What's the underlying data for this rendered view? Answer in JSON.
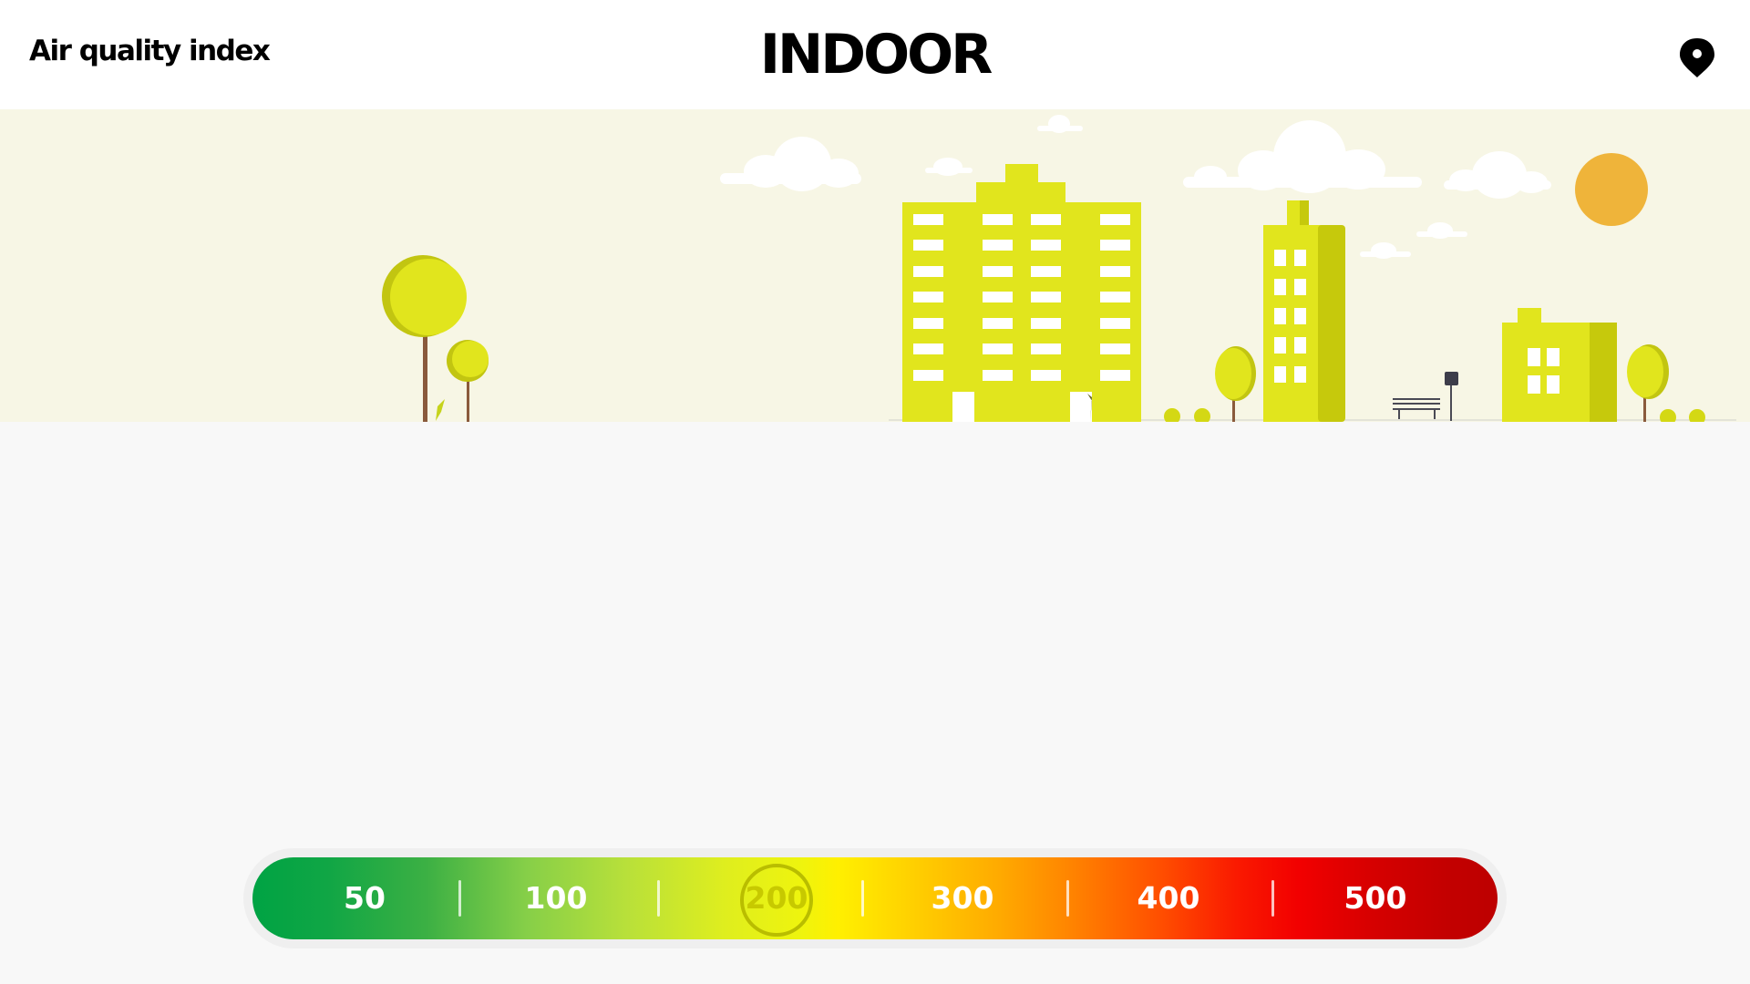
{
  "header": {
    "app_title": "Air quality index",
    "mode_title": "INDOOR",
    "location_icon": "location-pin-icon"
  },
  "scene": {
    "description_icons": [
      "cloud-icon",
      "sun-icon",
      "building-icon",
      "tree-icon",
      "bench-icon",
      "lamp-post-icon"
    ],
    "colors": {
      "sky": "#f7f6e5",
      "building": "#e1e51d",
      "building_shade": "#c6c90c",
      "sun": "#efb43a",
      "trunk": "#8a5a3c",
      "cloud": "#ffffff",
      "ground": "#f8f8f8"
    }
  },
  "aqi_scale": {
    "current_value": "200",
    "labels": [
      "50",
      "100",
      "200",
      "300",
      "400",
      "500"
    ],
    "colors": {
      "good": "#00a344",
      "moderate": "#fff000",
      "unhealthy": "#ff8200",
      "hazardous": "#bd0000"
    }
  }
}
